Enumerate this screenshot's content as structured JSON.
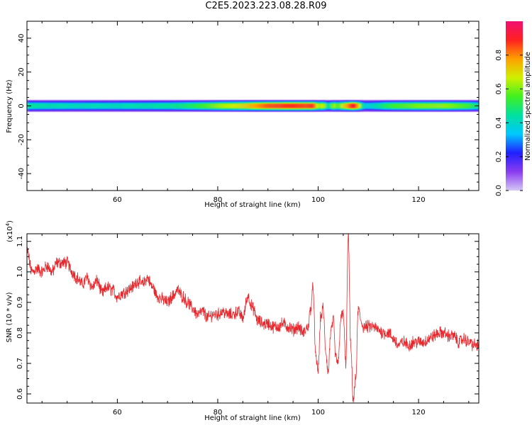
{
  "title": "C2E5.2023.223.08.28.R09",
  "colors": {
    "signal": "#e8282d",
    "axis": "#000000",
    "colormap": [
      "#d5c8f5",
      "#8a3cf0",
      "#2020ff",
      "#00c8ff",
      "#00e0a0",
      "#40f020",
      "#d0f000",
      "#ffa000",
      "#ff2020",
      "#f01070"
    ]
  },
  "chart_data": [
    {
      "type": "heatmap",
      "xlabel": "Height of straight line (km)",
      "ylabel": "Frequency (Hz)",
      "xlim": [
        42,
        132
      ],
      "ylim": [
        -50,
        50
      ],
      "x_ticks": [
        60,
        80,
        100,
        120
      ],
      "y_ticks": [
        -40,
        -20,
        0,
        20,
        40
      ],
      "colorbar": {
        "label": "Normalized spectral amplitude",
        "range": [
          0.0,
          1.0
        ],
        "ticks": [
          "0.0",
          "0.2",
          "0.4",
          "0.6",
          "0.8"
        ]
      },
      "band_halfwidth_hz": 3,
      "amplitude_profile": {
        "x": [
          42,
          50,
          60,
          70,
          75,
          80,
          85,
          90,
          95,
          98,
          99,
          100,
          101,
          102,
          103,
          104,
          105,
          106,
          107,
          108,
          109,
          110,
          115,
          120,
          125,
          130,
          132
        ],
        "peak": [
          0.45,
          0.42,
          0.42,
          0.45,
          0.5,
          0.62,
          0.7,
          0.85,
          0.88,
          0.86,
          0.9,
          0.6,
          0.7,
          0.4,
          0.65,
          0.55,
          0.7,
          0.8,
          0.95,
          0.75,
          0.4,
          0.38,
          0.55,
          0.6,
          0.62,
          0.55,
          0.45
        ]
      }
    },
    {
      "type": "line",
      "xlabel": "Height of straight line (km)",
      "ylabel": "SNR (10 * v/v)",
      "y_exponent_label": "(x10",
      "y_exponent_power": "4",
      "y_exponent_close": ")",
      "xlim": [
        42,
        132
      ],
      "ylim": [
        0.57,
        1.125
      ],
      "x_ticks": [
        60,
        80,
        100,
        120
      ],
      "y_ticks": [
        0.6,
        0.7,
        0.8,
        0.9,
        1.0,
        1.1
      ],
      "series": [
        {
          "x": [
            42,
            43,
            44,
            45,
            46,
            47,
            48,
            49,
            50,
            51,
            52,
            53,
            54,
            55,
            56,
            57,
            58,
            59,
            60,
            61,
            62,
            63,
            64,
            65,
            66,
            67,
            68,
            69,
            70,
            71,
            72,
            73,
            74,
            75,
            76,
            77,
            78,
            79,
            80,
            81,
            82,
            83,
            84,
            85,
            86,
            87,
            88,
            89,
            90,
            91,
            92,
            93,
            94,
            95,
            96,
            97,
            98,
            98.5,
            99,
            99.5,
            100,
            100.5,
            101,
            101.5,
            102,
            102.5,
            103,
            103.5,
            104,
            104.5,
            105,
            105.5,
            106,
            106.5,
            107,
            107.5,
            108,
            108.5,
            109,
            110,
            111,
            112,
            113,
            114,
            115,
            116,
            117,
            118,
            119,
            120,
            121,
            122,
            123,
            124,
            125,
            126,
            127,
            128,
            129,
            130,
            131,
            132
          ],
          "y": [
            1.07,
            1.0,
            1.01,
            1.0,
            1.02,
            1.0,
            1.03,
            1.03,
            1.03,
            1.0,
            0.98,
            0.96,
            0.98,
            0.95,
            0.97,
            0.93,
            0.95,
            0.94,
            0.92,
            0.93,
            0.94,
            0.95,
            0.97,
            0.96,
            0.98,
            0.95,
            0.92,
            0.91,
            0.9,
            0.92,
            0.94,
            0.92,
            0.9,
            0.88,
            0.86,
            0.87,
            0.85,
            0.86,
            0.86,
            0.87,
            0.86,
            0.86,
            0.87,
            0.85,
            0.92,
            0.88,
            0.84,
            0.83,
            0.83,
            0.82,
            0.82,
            0.83,
            0.82,
            0.81,
            0.82,
            0.8,
            0.82,
            0.88,
            0.95,
            0.72,
            0.68,
            0.85,
            0.88,
            0.74,
            0.67,
            0.8,
            0.84,
            0.72,
            0.7,
            0.85,
            0.86,
            0.7,
            1.12,
            0.75,
            0.58,
            0.65,
            0.88,
            0.84,
            0.82,
            0.82,
            0.82,
            0.81,
            0.8,
            0.8,
            0.78,
            0.76,
            0.77,
            0.76,
            0.77,
            0.77,
            0.77,
            0.78,
            0.79,
            0.8,
            0.8,
            0.79,
            0.79,
            0.77,
            0.78,
            0.77,
            0.76,
            0.76
          ]
        }
      ]
    }
  ]
}
